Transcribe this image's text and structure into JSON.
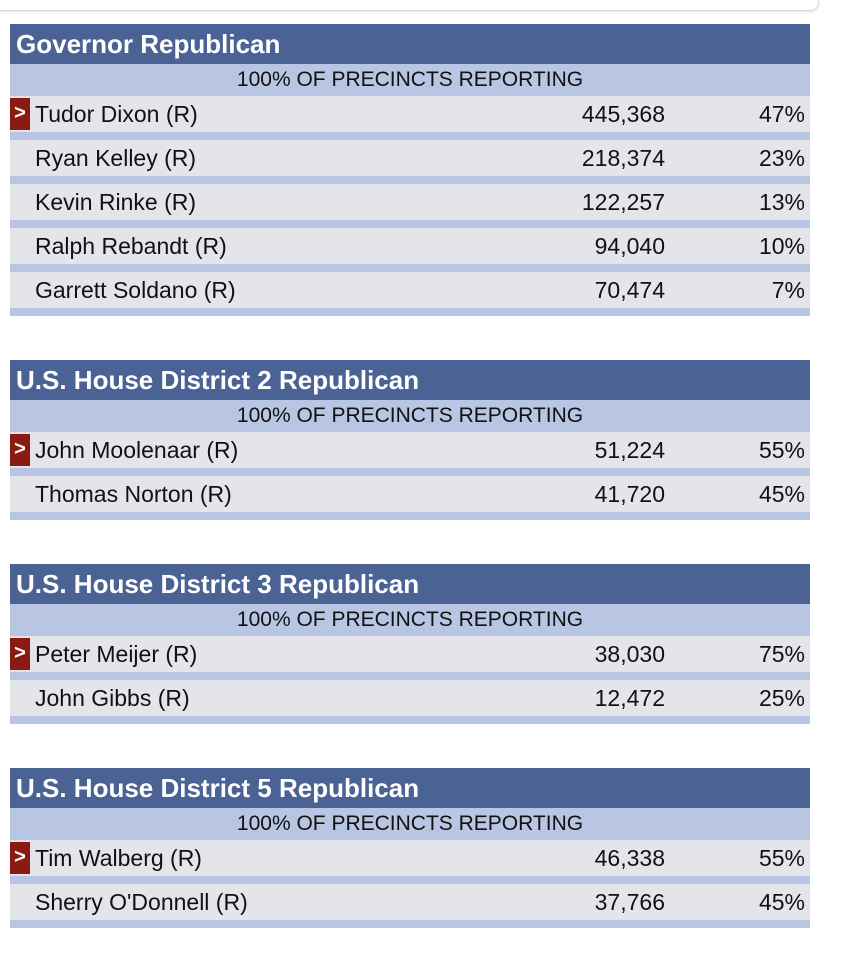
{
  "races": [
    {
      "title": "Governor Republican",
      "reporting": "100% OF PRECINCTS REPORTING",
      "candidates": [
        {
          "name": "Tudor Dixon (R)",
          "votes": "445,368",
          "pct": "47%",
          "winner": true
        },
        {
          "name": "Ryan Kelley (R)",
          "votes": "218,374",
          "pct": "23%",
          "winner": false
        },
        {
          "name": "Kevin Rinke (R)",
          "votes": "122,257",
          "pct": "13%",
          "winner": false
        },
        {
          "name": "Ralph Rebandt (R)",
          "votes": "94,040",
          "pct": "10%",
          "winner": false
        },
        {
          "name": "Garrett Soldano (R)",
          "votes": "70,474",
          "pct": "7%",
          "winner": false
        }
      ]
    },
    {
      "title": "U.S. House District 2 Republican",
      "reporting": "100% OF PRECINCTS REPORTING",
      "candidates": [
        {
          "name": "John Moolenaar (R)",
          "votes": "51,224",
          "pct": "55%",
          "winner": true
        },
        {
          "name": "Thomas Norton (R)",
          "votes": "41,720",
          "pct": "45%",
          "winner": false
        }
      ]
    },
    {
      "title": "U.S. House District 3 Republican",
      "reporting": "100% OF PRECINCTS REPORTING",
      "candidates": [
        {
          "name": "Peter Meijer (R)",
          "votes": "38,030",
          "pct": "75%",
          "winner": true
        },
        {
          "name": "John Gibbs (R)",
          "votes": "12,472",
          "pct": "25%",
          "winner": false
        }
      ]
    },
    {
      "title": "U.S. House District 5 Republican",
      "reporting": "100% OF PRECINCTS REPORTING",
      "candidates": [
        {
          "name": "Tim Walberg (R)",
          "votes": "46,338",
          "pct": "55%",
          "winner": true
        },
        {
          "name": "Sherry O'Donnell (R)",
          "votes": "37,766",
          "pct": "45%",
          "winner": false
        }
      ]
    }
  ],
  "winner_marker": ">",
  "colors": {
    "header_bg": "#4a6294",
    "reporting_bg": "#b8c6e3",
    "row_bg": "#e3e5ea",
    "winner_marker_bg": "#8b1a13"
  }
}
